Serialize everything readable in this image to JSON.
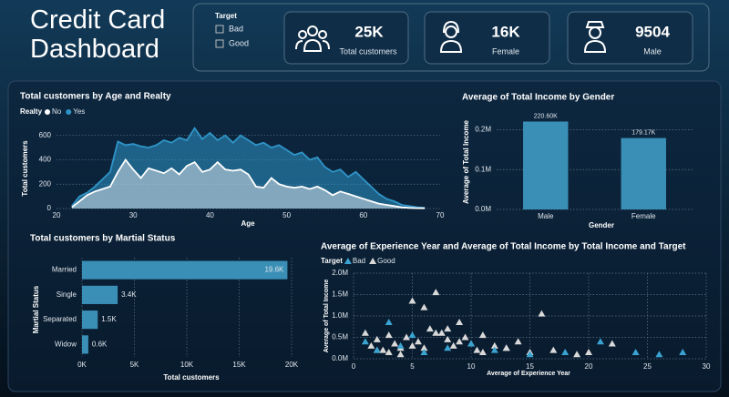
{
  "header": {
    "title": "Credit Card Dashboard",
    "filter": {
      "title": "Target",
      "options": [
        "Bad",
        "Good"
      ]
    },
    "cards": [
      {
        "value": "25K",
        "label": "Total customers"
      },
      {
        "value": "16K",
        "label": "Female"
      },
      {
        "value": 9504,
        "label": "Male"
      }
    ]
  },
  "chart_data": [
    {
      "type": "area",
      "title": "Total customers by Age and Realty",
      "legend_title": "Realty",
      "xlabel": "Age",
      "ylabel": "Total customers",
      "x": [
        22,
        23,
        24,
        25,
        26,
        27,
        28,
        29,
        30,
        31,
        32,
        33,
        34,
        35,
        36,
        37,
        38,
        39,
        40,
        41,
        42,
        43,
        44,
        45,
        46,
        47,
        48,
        49,
        50,
        51,
        52,
        53,
        54,
        55,
        56,
        57,
        58,
        59,
        60,
        61,
        62,
        63,
        64,
        65,
        66,
        67,
        68
      ],
      "series": [
        {
          "name": "No",
          "color": "#ffffff",
          "values": [
            10,
            60,
            110,
            140,
            160,
            180,
            300,
            400,
            320,
            250,
            330,
            310,
            290,
            330,
            280,
            350,
            380,
            300,
            320,
            380,
            320,
            310,
            320,
            280,
            180,
            170,
            250,
            200,
            180,
            170,
            180,
            160,
            180,
            150,
            110,
            140,
            120,
            100,
            80,
            60,
            40,
            30,
            20,
            10,
            5,
            3,
            2
          ]
        },
        {
          "name": "Yes",
          "color": "#2f95c8",
          "values": [
            20,
            100,
            130,
            180,
            240,
            300,
            550,
            520,
            530,
            510,
            500,
            520,
            560,
            540,
            580,
            560,
            660,
            570,
            620,
            560,
            600,
            540,
            600,
            560,
            520,
            540,
            500,
            520,
            480,
            440,
            460,
            400,
            420,
            340,
            300,
            320,
            260,
            300,
            240,
            180,
            120,
            80,
            60,
            30,
            20,
            10,
            5
          ]
        }
      ],
      "xlim": [
        20,
        70
      ],
      "xticks": [
        20,
        30,
        40,
        50,
        60,
        70
      ],
      "ylim": [
        0,
        650
      ],
      "yticks": [
        0,
        200,
        400,
        600
      ],
      "grid": true
    },
    {
      "type": "bar",
      "title": "Average of Total Income by Gender",
      "xlabel": "Gender",
      "ylabel": "Average of Total Income",
      "categories": [
        "Male",
        "Female"
      ],
      "values": [
        220600,
        179170
      ],
      "value_labels": [
        "220.60K",
        "179.17K"
      ],
      "color": "#3a8fb7",
      "ylim": [
        0,
        240000
      ],
      "yticks": [
        {
          "value": 0,
          "label": "0.0M"
        },
        {
          "value": 100000,
          "label": "0.1M"
        },
        {
          "value": 200000,
          "label": "0.2M"
        }
      ],
      "grid": true
    },
    {
      "type": "bar",
      "orientation": "horizontal",
      "title": "Total customers by Martial Status",
      "xlabel": "Total customers",
      "ylabel": "Martial Status",
      "categories": [
        "Married",
        "Single",
        "Separated",
        "Widow"
      ],
      "values": [
        19600,
        3400,
        1500,
        600
      ],
      "value_labels": [
        "19.6K",
        "3.4K",
        "1.5K",
        "0.6K"
      ],
      "color": "#3a8fb7",
      "xlim": [
        0,
        20000
      ],
      "xticks": [
        {
          "value": 0,
          "label": "0K"
        },
        {
          "value": 5000,
          "label": "5K"
        },
        {
          "value": 10000,
          "label": "10K"
        },
        {
          "value": 15000,
          "label": "15K"
        },
        {
          "value": 20000,
          "label": "20K"
        }
      ],
      "grid": true
    },
    {
      "type": "scatter",
      "title": "Average of Experience Year and Average of Total Income by Total Income and Target",
      "legend_title": "Target",
      "marker": "triangle",
      "xlabel": "Average of Experience Year",
      "ylabel": "Average of Total Income",
      "series": [
        {
          "name": "Bad",
          "color": "#3aa3d0",
          "x": [
            1,
            2,
            3,
            4,
            5,
            6,
            8,
            10,
            12,
            15,
            18,
            21,
            24,
            26,
            28
          ],
          "values": [
            400000,
            200000,
            850000,
            300000,
            550000,
            150000,
            250000,
            350000,
            200000,
            100000,
            150000,
            400000,
            150000,
            100000,
            150000
          ]
        },
        {
          "name": "Good",
          "color": "#d9d9d9",
          "x": [
            1,
            1.5,
            2,
            2.5,
            3,
            3.5,
            4,
            4.5,
            5,
            5.5,
            6,
            6.5,
            7,
            7.5,
            8,
            8.5,
            9,
            9.5,
            10,
            10.5,
            11,
            12,
            13,
            14,
            15,
            16,
            17,
            19,
            20,
            22,
            5,
            7,
            3,
            6,
            8,
            9,
            4,
            2,
            11,
            13
          ],
          "values": [
            600000,
            300000,
            450000,
            200000,
            550000,
            350000,
            250000,
            500000,
            1350000,
            400000,
            1200000,
            700000,
            1550000,
            600000,
            450000,
            300000,
            850000,
            500000,
            350000,
            200000,
            550000,
            300000,
            250000,
            400000,
            150000,
            1050000,
            200000,
            100000,
            150000,
            350000,
            300000,
            600000,
            150000,
            250000,
            700000,
            400000,
            100000,
            200000,
            150000,
            250000
          ]
        }
      ],
      "xlim": [
        0,
        30
      ],
      "xticks": [
        0,
        5,
        10,
        15,
        20,
        25,
        30
      ],
      "ylim": [
        0,
        2000000
      ],
      "yticks": [
        {
          "value": 0,
          "label": "0.0M"
        },
        {
          "value": 500000,
          "label": "0.5M"
        },
        {
          "value": 1000000,
          "label": "1.0M"
        },
        {
          "value": 1500000,
          "label": "1.5M"
        },
        {
          "value": 2000000,
          "label": "2.0M"
        }
      ],
      "grid": true
    }
  ]
}
